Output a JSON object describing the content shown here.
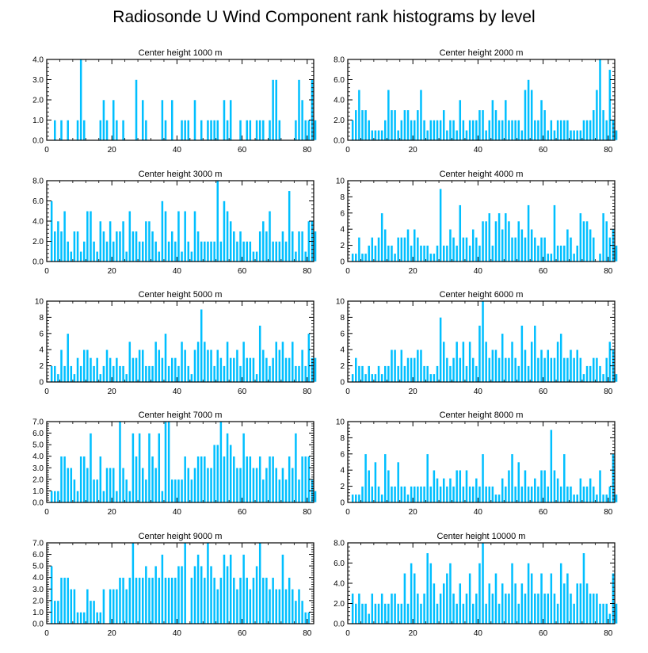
{
  "title": "Radiosonde U Wind Component rank histograms by level",
  "colors": {
    "bar": "#00bfff",
    "bar_edge": "#ffffff",
    "axis": "#000000"
  },
  "chart_data": [
    {
      "type": "bar",
      "title": "Center height 1000 m",
      "xlim": [
        0,
        82
      ],
      "ylim": [
        0,
        4
      ],
      "xticks": [
        0,
        20,
        40,
        60,
        80
      ],
      "yticks": [
        0,
        1,
        2,
        3,
        4
      ],
      "ytick_labels": [
        "0.0",
        "1.0",
        "2.0",
        "3.0",
        "4.0"
      ],
      "values": [
        0,
        0,
        1,
        0,
        1,
        0,
        1,
        0,
        0,
        1,
        4,
        1,
        0,
        0,
        0,
        0,
        1,
        2,
        1,
        0,
        2,
        1,
        0,
        1,
        0,
        0,
        0,
        3,
        0,
        2,
        1,
        0,
        0,
        0,
        0,
        2,
        1,
        0,
        2,
        0,
        0,
        1,
        1,
        1,
        0,
        2,
        0,
        1,
        0,
        1,
        1,
        1,
        1,
        0,
        2,
        1,
        2,
        0,
        0,
        1,
        0,
        1,
        1,
        0,
        1,
        1,
        1,
        0,
        1,
        3,
        3,
        1,
        0,
        0,
        0,
        0,
        1,
        3,
        2,
        1,
        1,
        3,
        1
      ]
    },
    {
      "type": "bar",
      "title": "Center height 2000 m",
      "xlim": [
        0,
        82
      ],
      "ylim": [
        0,
        8
      ],
      "xticks": [
        0,
        20,
        40,
        60,
        80
      ],
      "yticks": [
        0,
        2,
        4,
        6,
        8
      ],
      "ytick_labels": [
        "0.0",
        "2.0",
        "4.0",
        "6.0",
        "8.0"
      ],
      "values": [
        0,
        2,
        3,
        5,
        3,
        3,
        2,
        1,
        1,
        1,
        1,
        2,
        5,
        3,
        3,
        1,
        2,
        3,
        3,
        2,
        2,
        3,
        5,
        2,
        1,
        2,
        2,
        2,
        2,
        3,
        1,
        2,
        2,
        1,
        4,
        2,
        1,
        2,
        2,
        2,
        3,
        3,
        1,
        2,
        4,
        3,
        2,
        2,
        4,
        2,
        2,
        2,
        2,
        1,
        5,
        6,
        5,
        2,
        2,
        4,
        3,
        1,
        2,
        1,
        2,
        2,
        2,
        2,
        1,
        1,
        1,
        1,
        2,
        2,
        2,
        3,
        5,
        8,
        3,
        2,
        7,
        2,
        1
      ]
    },
    {
      "type": "bar",
      "title": "Center height 3000 m",
      "xlim": [
        0,
        82
      ],
      "ylim": [
        0,
        8
      ],
      "xticks": [
        0,
        20,
        40,
        60,
        80
      ],
      "yticks": [
        0,
        2,
        4,
        6,
        8
      ],
      "ytick_labels": [
        "0.0",
        "2.0",
        "4.0",
        "6.0",
        "8.0"
      ],
      "values": [
        0,
        6,
        3,
        4,
        3,
        5,
        2,
        1,
        3,
        3,
        1,
        2,
        5,
        5,
        2,
        1,
        4,
        3,
        2,
        4,
        2,
        3,
        3,
        4,
        1,
        5,
        3,
        3,
        2,
        2,
        4,
        4,
        3,
        2,
        1,
        6,
        5,
        2,
        3,
        2,
        5,
        1,
        5,
        2,
        1,
        5,
        3,
        2,
        2,
        2,
        2,
        2,
        8,
        2,
        6,
        5,
        4,
        3,
        2,
        3,
        2,
        2,
        2,
        1,
        1,
        3,
        4,
        3,
        5,
        2,
        2,
        2,
        3,
        2,
        7,
        3,
        1,
        3,
        3,
        1,
        4,
        4,
        3
      ]
    },
    {
      "type": "bar",
      "title": "Center height 4000 m",
      "xlim": [
        0,
        82
      ],
      "ylim": [
        0,
        10
      ],
      "xticks": [
        0,
        20,
        40,
        60,
        80
      ],
      "yticks": [
        0,
        2,
        4,
        6,
        8,
        10
      ],
      "ytick_labels": [
        "0",
        "2",
        "4",
        "6",
        "8",
        "10"
      ],
      "values": [
        0,
        1,
        1,
        3,
        1,
        1,
        2,
        3,
        2,
        3,
        6,
        4,
        2,
        2,
        1,
        3,
        3,
        3,
        4,
        2,
        4,
        3,
        2,
        2,
        2,
        1,
        1,
        2,
        9,
        2,
        2,
        4,
        3,
        2,
        7,
        3,
        3,
        2,
        4,
        3,
        2,
        5,
        5,
        6,
        2,
        5,
        6,
        4,
        6,
        5,
        3,
        3,
        5,
        4,
        3,
        7,
        4,
        3,
        2,
        3,
        3,
        1,
        1,
        7,
        2,
        2,
        2,
        4,
        3,
        1,
        2,
        6,
        5,
        5,
        4,
        3,
        0,
        1,
        6,
        5,
        3,
        4,
        2
      ]
    },
    {
      "type": "bar",
      "title": "Center height 5000 m",
      "xlim": [
        0,
        82
      ],
      "ylim": [
        0,
        10
      ],
      "xticks": [
        0,
        20,
        40,
        60,
        80
      ],
      "yticks": [
        0,
        2,
        4,
        6,
        8,
        10
      ],
      "ytick_labels": [
        "0",
        "2",
        "4",
        "6",
        "8",
        "10"
      ],
      "values": [
        0,
        2,
        2,
        1,
        4,
        2,
        6,
        2,
        1,
        3,
        2,
        4,
        4,
        3,
        2,
        3,
        1,
        2,
        4,
        3,
        2,
        3,
        2,
        2,
        1,
        5,
        3,
        3,
        4,
        4,
        2,
        2,
        2,
        5,
        4,
        3,
        6,
        2,
        3,
        3,
        2,
        5,
        4,
        2,
        1,
        4,
        5,
        9,
        5,
        4,
        4,
        2,
        4,
        3,
        2,
        5,
        3,
        3,
        4,
        2,
        5,
        3,
        3,
        3,
        1,
        7,
        4,
        3,
        2,
        3,
        5,
        4,
        5,
        3,
        3,
        5,
        2,
        2,
        4,
        2,
        6,
        3,
        3
      ]
    },
    {
      "type": "bar",
      "title": "Center height 6000 m",
      "xlim": [
        0,
        82
      ],
      "ylim": [
        0,
        10
      ],
      "xticks": [
        0,
        20,
        40,
        60,
        80
      ],
      "yticks": [
        0,
        2,
        4,
        6,
        8,
        10
      ],
      "ytick_labels": [
        "0",
        "2",
        "4",
        "6",
        "8",
        "10"
      ],
      "values": [
        0,
        1,
        3,
        2,
        2,
        1,
        2,
        1,
        1,
        2,
        1,
        2,
        2,
        4,
        4,
        2,
        4,
        2,
        3,
        3,
        3,
        4,
        4,
        2,
        2,
        1,
        1,
        2,
        8,
        5,
        3,
        2,
        3,
        5,
        3,
        5,
        2,
        5,
        3,
        2,
        7,
        10,
        5,
        3,
        4,
        4,
        3,
        6,
        3,
        3,
        5,
        3,
        2,
        7,
        4,
        2,
        5,
        7,
        3,
        4,
        3,
        4,
        3,
        3,
        5,
        6,
        3,
        3,
        4,
        3,
        4,
        3,
        1,
        2,
        2,
        3,
        3,
        2,
        1,
        3,
        5,
        4,
        1
      ]
    },
    {
      "type": "bar",
      "title": "Center height 7000 m",
      "xlim": [
        0,
        82
      ],
      "ylim": [
        0,
        7
      ],
      "xticks": [
        0,
        20,
        40,
        60,
        80
      ],
      "yticks": [
        0,
        1,
        2,
        3,
        4,
        5,
        6,
        7
      ],
      "ytick_labels": [
        "0.0",
        "1.0",
        "2.0",
        "3.0",
        "4.0",
        "5.0",
        "6.0",
        "7.0"
      ],
      "values": [
        0,
        1,
        1,
        1,
        4,
        4,
        3,
        3,
        2,
        1,
        4,
        4,
        3,
        6,
        2,
        2,
        4,
        1,
        3,
        3,
        3,
        1,
        7,
        3,
        2,
        1,
        6,
        4,
        6,
        3,
        2,
        6,
        4,
        3,
        6,
        1,
        7,
        7,
        2,
        2,
        2,
        2,
        4,
        3,
        2,
        3,
        4,
        4,
        4,
        3,
        3,
        5,
        5,
        7,
        4,
        6,
        5,
        4,
        3,
        3,
        6,
        4,
        4,
        3,
        3,
        4,
        2,
        3,
        4,
        4,
        3,
        2,
        3,
        2,
        4,
        3,
        6,
        2,
        4,
        4,
        4,
        2,
        1
      ]
    },
    {
      "type": "bar",
      "title": "Center height 8000 m",
      "xlim": [
        0,
        82
      ],
      "ylim": [
        0,
        10
      ],
      "xticks": [
        0,
        20,
        40,
        60,
        80
      ],
      "yticks": [
        0,
        2,
        4,
        6,
        8,
        10
      ],
      "ytick_labels": [
        "0",
        "2",
        "4",
        "6",
        "8",
        "10"
      ],
      "values": [
        0,
        1,
        1,
        1,
        2,
        6,
        4,
        2,
        5,
        2,
        1,
        6,
        4,
        2,
        2,
        5,
        2,
        2,
        1,
        2,
        2,
        2,
        2,
        2,
        6,
        2,
        4,
        3,
        2,
        3,
        2,
        3,
        2,
        4,
        4,
        2,
        4,
        2,
        2,
        3,
        2,
        6,
        2,
        2,
        2,
        1,
        1,
        3,
        2,
        4,
        6,
        2,
        5,
        2,
        4,
        2,
        2,
        3,
        2,
        4,
        4,
        2,
        9,
        4,
        3,
        2,
        6,
        2,
        2,
        1,
        1,
        3,
        2,
        2,
        3,
        2,
        1,
        4,
        1,
        1,
        2,
        6,
        1
      ]
    },
    {
      "type": "bar",
      "title": "Center height 9000 m",
      "xlim": [
        0,
        82
      ],
      "ylim": [
        0,
        7
      ],
      "xticks": [
        0,
        20,
        40,
        60,
        80
      ],
      "yticks": [
        0,
        1,
        2,
        3,
        4,
        5,
        6,
        7
      ],
      "ytick_labels": [
        "0.0",
        "1.0",
        "2.0",
        "3.0",
        "4.0",
        "5.0",
        "6.0",
        "7.0"
      ],
      "values": [
        0,
        5,
        2,
        2,
        4,
        4,
        4,
        3,
        3,
        1,
        1,
        1,
        3,
        2,
        2,
        1,
        1,
        3,
        0,
        3,
        3,
        3,
        4,
        4,
        3,
        4,
        7,
        4,
        4,
        4,
        5,
        4,
        4,
        5,
        4,
        6,
        4,
        4,
        4,
        4,
        5,
        5,
        7,
        0,
        4,
        5,
        6,
        5,
        4,
        7,
        5,
        4,
        3,
        4,
        6,
        5,
        6,
        4,
        3,
        4,
        6,
        4,
        3,
        4,
        5,
        7,
        4,
        4,
        3,
        4,
        3,
        3,
        6,
        3,
        4,
        3,
        2,
        3,
        2,
        1,
        1,
        0,
        0
      ]
    },
    {
      "type": "bar",
      "title": "Center height 10000 m",
      "xlim": [
        0,
        82
      ],
      "ylim": [
        0,
        8
      ],
      "xticks": [
        0,
        20,
        40,
        60,
        80
      ],
      "yticks": [
        0,
        2,
        4,
        6,
        8
      ],
      "ytick_labels": [
        "0.0",
        "2.0",
        "4.0",
        "6.0",
        "8.0"
      ],
      "values": [
        0,
        3,
        2,
        3,
        2,
        2,
        1,
        3,
        2,
        2,
        3,
        2,
        2,
        3,
        3,
        2,
        2,
        5,
        2,
        6,
        5,
        3,
        2,
        3,
        7,
        6,
        4,
        2,
        3,
        4,
        5,
        6,
        3,
        2,
        4,
        2,
        3,
        5,
        2,
        3,
        6,
        8,
        2,
        4,
        3,
        5,
        2,
        4,
        3,
        3,
        6,
        4,
        2,
        4,
        3,
        6,
        5,
        3,
        3,
        5,
        3,
        3,
        5,
        3,
        2,
        6,
        4,
        5,
        3,
        2,
        4,
        4,
        7,
        4,
        3,
        3,
        3,
        2,
        2,
        2,
        1,
        5,
        2
      ]
    }
  ]
}
